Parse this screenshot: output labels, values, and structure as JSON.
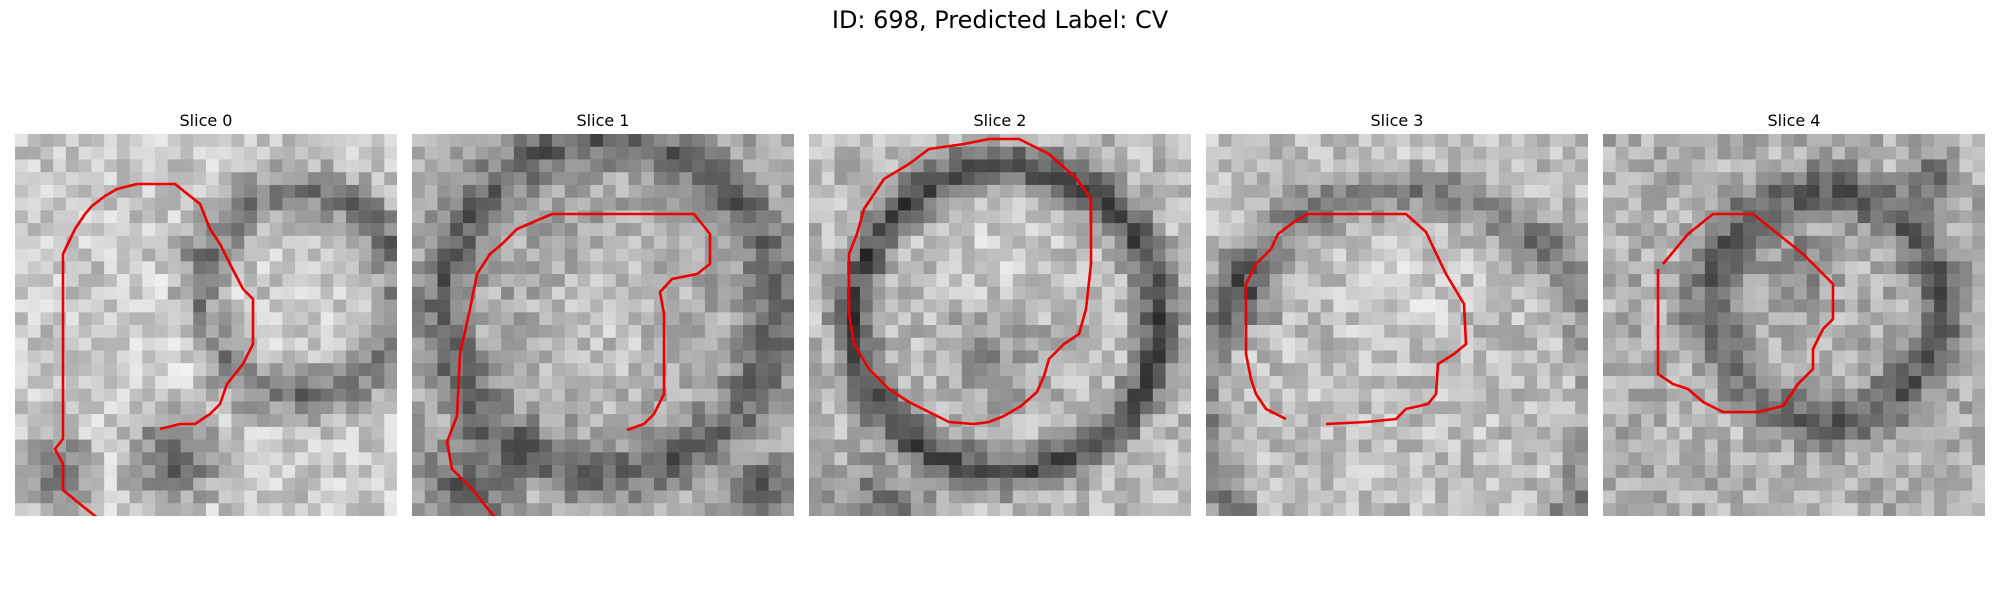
{
  "figure": {
    "title": "ID: 698, Predicted Label: CV"
  },
  "panels": [
    {
      "title": "Slice 0",
      "seed": 11,
      "contour_color": "#ee0000"
    },
    {
      "title": "Slice 1",
      "seed": 23,
      "contour_color": "#ee0000"
    },
    {
      "title": "Slice 2",
      "seed": 37,
      "contour_color": "#ee0000"
    },
    {
      "title": "Slice 3",
      "seed": 41,
      "contour_color": "#ee0000"
    },
    {
      "title": "Slice 4",
      "seed": 53,
      "contour_color": "#ee0000"
    }
  ]
}
